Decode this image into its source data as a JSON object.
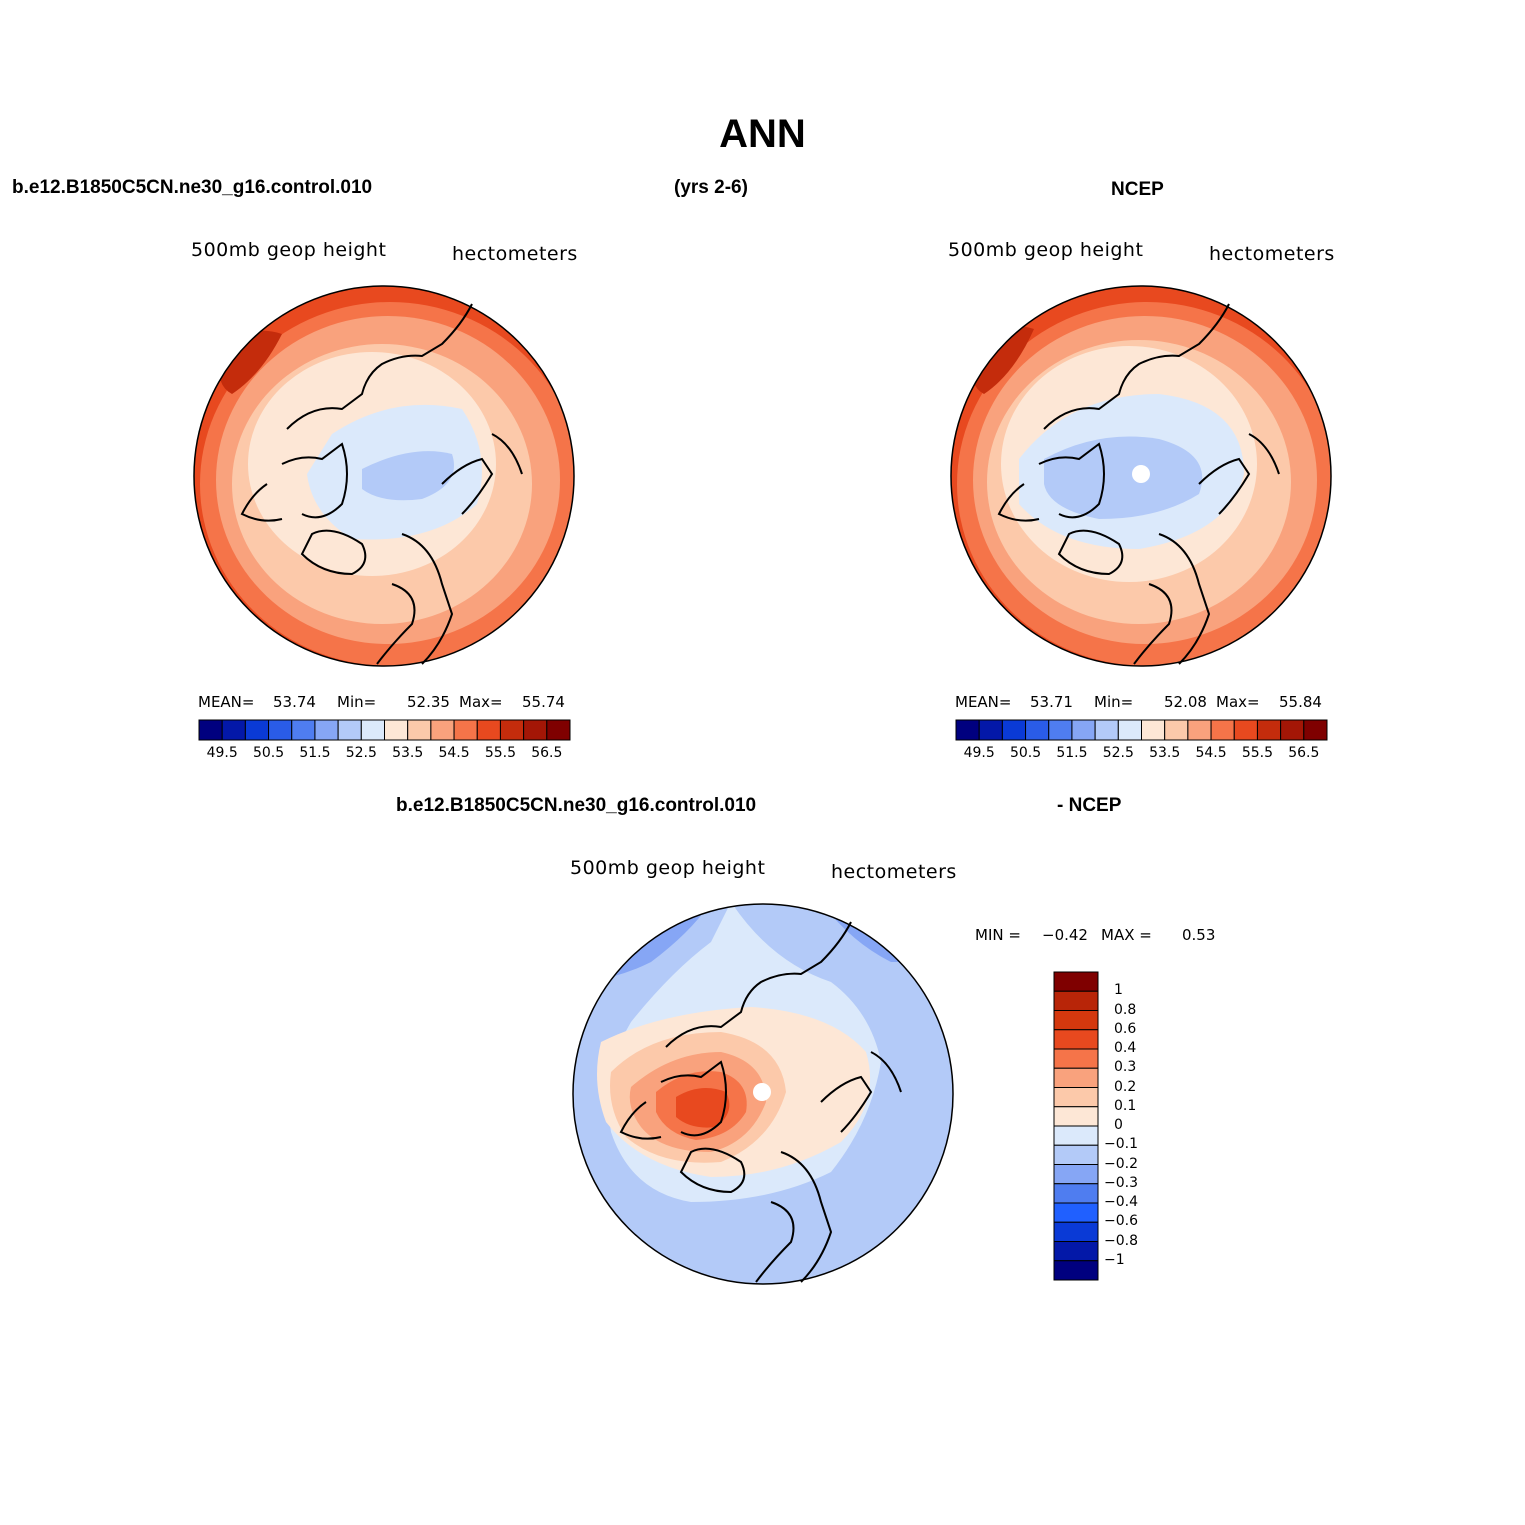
{
  "main_title": "ANN",
  "header": {
    "left": "b.e12.B1850C5CN.ne30_g16.control.010",
    "center": "(yrs 2-6)",
    "right": "NCEP",
    "diff_left": "b.e12.B1850C5CN.ne30_g16.control.010",
    "diff_right": "- NCEP"
  },
  "colors": {
    "bwr": [
      "#00007f",
      "#0318a8",
      "#0a3ad6",
      "#2a5ce8",
      "#4f7df0",
      "#86a6f5",
      "#b3caf8",
      "#dbe9fb",
      "#fde7d6",
      "#fcc9aa",
      "#f9a27d",
      "#f57449",
      "#e8491f",
      "#c42c0c",
      "#a31606",
      "#7f0000"
    ],
    "diff": [
      "#00007f",
      "#0318a8",
      "#0a3ad6",
      "#2060ff",
      "#4f7df0",
      "#86a6f5",
      "#b3caf8",
      "#dbe9fb",
      "#fde7d6",
      "#fcc9aa",
      "#f9a27d",
      "#f57449",
      "#e8491f",
      "#d4380e",
      "#b82508",
      "#7f0000"
    ],
    "coast": "#000000"
  },
  "panels": [
    {
      "id": "model",
      "label_left": "500mb  geop  height",
      "label_right": "hectometers",
      "mean_label": "MEAN=",
      "mean": "53.74",
      "min_label": "Min=",
      "min": "52.35",
      "max_label": "Max=",
      "max": "55.74",
      "colorbar_ticks": [
        "49.5",
        "50.5",
        "51.5",
        "52.5",
        "53.5",
        "54.5",
        "55.5",
        "56.5"
      ],
      "pole_missing": false
    },
    {
      "id": "ncep",
      "label_left": "500mb  geop  height",
      "label_right": "hectometers",
      "mean_label": "MEAN=",
      "mean": "53.71",
      "min_label": "Min=",
      "min": "52.08",
      "max_label": "Max=",
      "max": "55.84",
      "colorbar_ticks": [
        "49.5",
        "50.5",
        "51.5",
        "52.5",
        "53.5",
        "54.5",
        "55.5",
        "56.5"
      ],
      "pole_missing": true
    }
  ],
  "diff_panel": {
    "label_left": "500mb  geop  height",
    "label_right": "hectometers",
    "min_label": "MIN =",
    "min": "−0.42",
    "max_label": "MAX =",
    "max": "0.53",
    "colorbar_ticks": [
      "1",
      "0.8",
      "0.6",
      "0.4",
      "0.3",
      "0.2",
      "0.1",
      "0",
      "−0.1",
      "−0.2",
      "−0.3",
      "−0.4",
      "−0.6",
      "−0.8",
      "−1"
    ],
    "pole_missing": true
  }
}
